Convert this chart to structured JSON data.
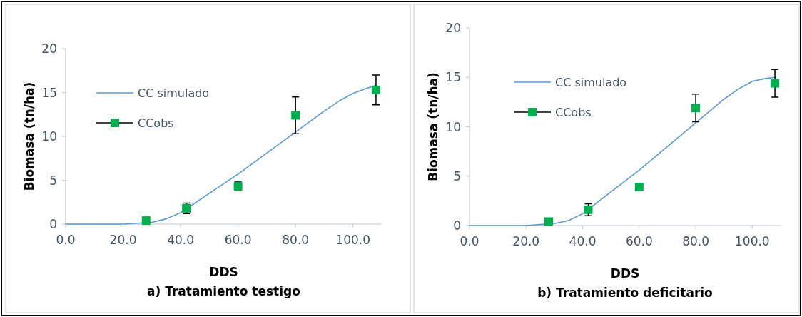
{
  "chart_data": [
    {
      "type": "line",
      "xlabel": "DDS",
      "ylabel": "Biomasa (tn/ha)",
      "annotations": [
        "a) Tratamiento testigo"
      ],
      "xlim": [
        0,
        110
      ],
      "ylim": [
        0,
        20
      ],
      "xticks": [
        {
          "value": 0,
          "label": "0.0"
        },
        {
          "value": 20,
          "label": "20.0"
        },
        {
          "value": 40,
          "label": "40.0"
        },
        {
          "value": 60,
          "label": "60.0"
        },
        {
          "value": 80,
          "label": "80.0"
        },
        {
          "value": 100,
          "label": "100.0"
        }
      ],
      "yticks": [
        0,
        5,
        10,
        15,
        20
      ],
      "grid": false,
      "legend": "top left",
      "series": [
        {
          "name": "CC simulado",
          "color": "#5b9bd5",
          "marker": "none",
          "x": [
            0,
            15,
            20,
            25,
            30,
            35,
            40,
            45,
            50,
            55,
            60,
            65,
            70,
            75,
            80,
            85,
            90,
            95,
            100,
            105,
            108
          ],
          "values": [
            0,
            0,
            0,
            0.1,
            0.2,
            0.6,
            1.3,
            2.4,
            3.5,
            4.6,
            5.7,
            6.9,
            8.1,
            9.3,
            10.5,
            11.7,
            12.9,
            14,
            14.9,
            15.5,
            15.8
          ]
        },
        {
          "name": "CCobs",
          "type": "scatter",
          "color": "#00b050",
          "marker": "square",
          "x": [
            28,
            42,
            60,
            80,
            108
          ],
          "values": [
            0.4,
            1.8,
            4.3,
            12.4,
            15.3
          ],
          "errors": [
            null,
            0.6,
            0.5,
            2.1,
            1.7
          ]
        }
      ]
    },
    {
      "type": "line",
      "xlabel": "DDS",
      "ylabel": "Biomasa (tn/ha)",
      "annotations": [
        "b) Tratamiento deficitario"
      ],
      "xlim": [
        0,
        110
      ],
      "ylim": [
        0,
        20
      ],
      "xticks": [
        {
          "value": 0,
          "label": "0.0"
        },
        {
          "value": 20,
          "label": "20.0"
        },
        {
          "value": 40,
          "label": "40.0"
        },
        {
          "value": 60,
          "label": "60.0"
        },
        {
          "value": 80,
          "label": "80.0"
        },
        {
          "value": 100,
          "label": "100.0"
        }
      ],
      "yticks": [
        0,
        5,
        10,
        15,
        20
      ],
      "grid": false,
      "legend": "top left",
      "series": [
        {
          "name": "CC simulado",
          "color": "#5b9bd5",
          "marker": "none",
          "x": [
            0,
            15,
            20,
            25,
            30,
            35,
            40,
            45,
            50,
            55,
            60,
            65,
            70,
            75,
            80,
            85,
            90,
            95,
            100,
            105,
            108
          ],
          "values": [
            0,
            0,
            0,
            0.1,
            0.2,
            0.5,
            1.2,
            2.3,
            3.4,
            4.5,
            5.6,
            6.8,
            8,
            9.2,
            10.4,
            11.6,
            12.8,
            13.8,
            14.6,
            14.9,
            15
          ]
        },
        {
          "name": "CCobs",
          "type": "scatter",
          "color": "#00b050",
          "marker": "square",
          "x": [
            28,
            42,
            60,
            80,
            108
          ],
          "values": [
            0.4,
            1.6,
            3.9,
            11.9,
            14.4
          ],
          "errors": [
            null,
            0.6,
            null,
            1.4,
            1.4
          ]
        }
      ]
    }
  ]
}
